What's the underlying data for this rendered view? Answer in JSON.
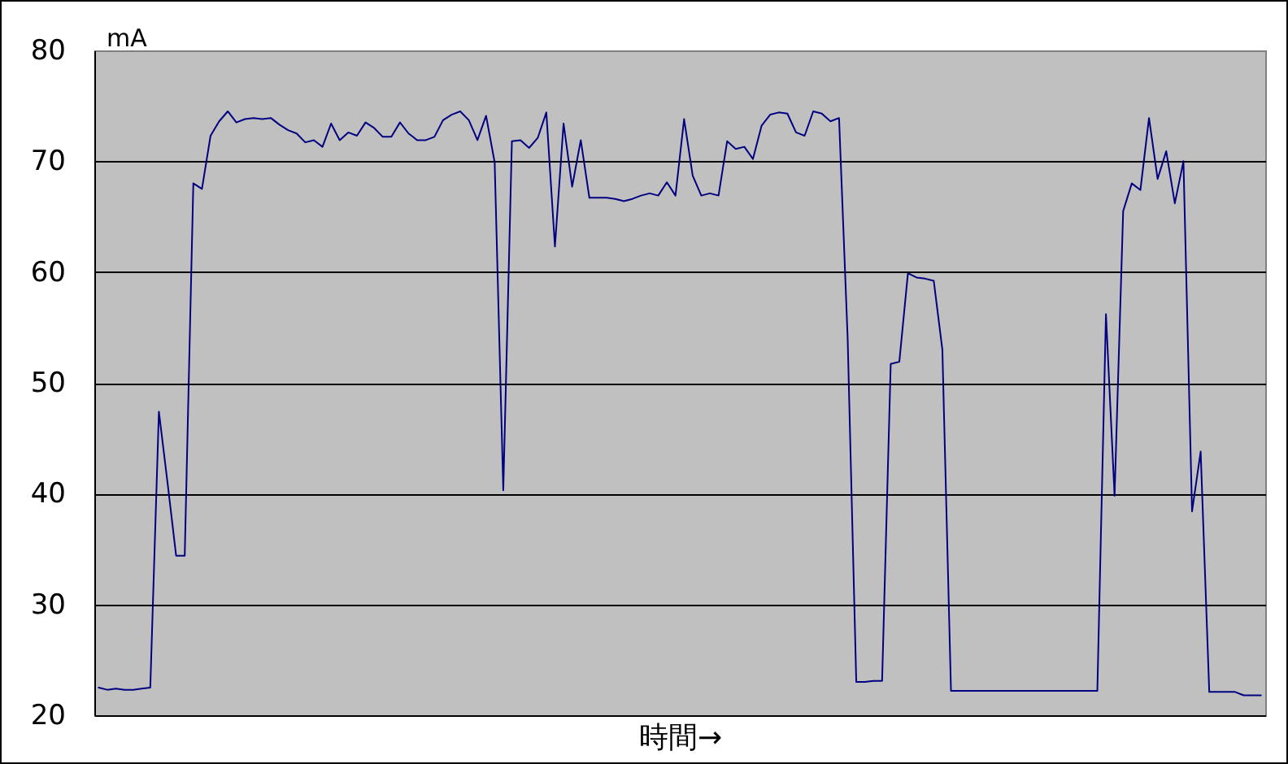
{
  "chart_data": {
    "type": "line",
    "xlabel": "時間→",
    "ylabel": "mA",
    "categories": [
      null,
      null,
      null,
      null,
      null,
      null,
      null,
      null,
      null,
      null,
      null,
      null,
      null,
      null,
      null,
      null,
      null,
      null,
      null,
      null,
      null,
      null,
      null,
      null,
      null,
      null,
      null,
      null,
      null,
      null,
      null,
      null,
      null,
      null,
      null,
      null,
      null,
      null,
      null,
      null,
      null,
      null,
      null,
      null,
      null,
      null,
      null,
      null,
      null,
      null,
      null,
      null,
      null,
      null,
      null,
      null,
      null,
      null,
      null,
      null,
      null,
      null,
      null,
      null,
      null,
      null,
      null,
      null,
      null,
      null,
      null,
      null,
      null,
      null,
      null,
      null,
      null,
      null,
      null,
      null,
      null,
      null,
      null,
      null,
      null,
      null,
      null,
      null,
      null,
      null,
      null,
      null,
      null,
      null,
      null,
      null,
      null,
      null,
      null,
      null,
      null,
      null,
      null,
      null,
      null,
      null,
      null,
      null,
      null,
      null,
      null,
      null,
      null,
      null,
      null,
      null,
      null,
      null,
      null,
      null,
      null,
      null,
      null,
      null,
      null,
      null,
      null,
      null,
      null,
      null,
      null,
      null,
      null,
      null,
      null,
      null
    ],
    "values": [
      22.5,
      22.3,
      22.4,
      22.3,
      22.3,
      22.4,
      22.5,
      47.4,
      41,
      34.4,
      34.4,
      68,
      67.5,
      72.3,
      73.6,
      74.5,
      73.5,
      73.8,
      73.9,
      73.8,
      73.9,
      73.3,
      72.8,
      72.5,
      71.7,
      71.9,
      71.3,
      73.4,
      71.9,
      72.6,
      72.3,
      73.5,
      73.0,
      72.2,
      72.2,
      73.5,
      72.5,
      71.9,
      71.9,
      72.2,
      73.7,
      74.2,
      74.5,
      73.7,
      71.9,
      74.1,
      69.9,
      40.3,
      71.8,
      71.9,
      71.2,
      72.1,
      74.4,
      62.3,
      73.4,
      67.7,
      71.9,
      66.7,
      66.7,
      66.7,
      66.6,
      66.4,
      66.6,
      66.9,
      67.1,
      66.9,
      68.1,
      66.9,
      73.8,
      68.7,
      66.9,
      67.1,
      66.9,
      71.8,
      71.1,
      71.3,
      70.2,
      73.2,
      74.2,
      74.4,
      74.3,
      72.6,
      72.3,
      74.5,
      74.3,
      73.6,
      73.9,
      54,
      23.0,
      23.0,
      23.1,
      23.1,
      51.7,
      51.9,
      59.9,
      59.5,
      59.4,
      59.2,
      53,
      22.2,
      22.2,
      22.2,
      22.2,
      22.2,
      22.2,
      22.2,
      22.2,
      22.2,
      22.2,
      22.2,
      22.2,
      22.2,
      22.2,
      22.2,
      22.2,
      22.2,
      22.2,
      56.2,
      39.8,
      65.5,
      68.0,
      67.4,
      73.9,
      68.4,
      70.9,
      66.2,
      70.0,
      38.4,
      43.8,
      22.1,
      22.1,
      22.1,
      22.1,
      21.8,
      21.8,
      21.8
    ],
    "color": "#000080",
    "ylim": [
      20,
      80
    ],
    "yticks": [
      20,
      30,
      40,
      50,
      60,
      70,
      80
    ],
    "grid": "y",
    "tick_labels": "y"
  }
}
